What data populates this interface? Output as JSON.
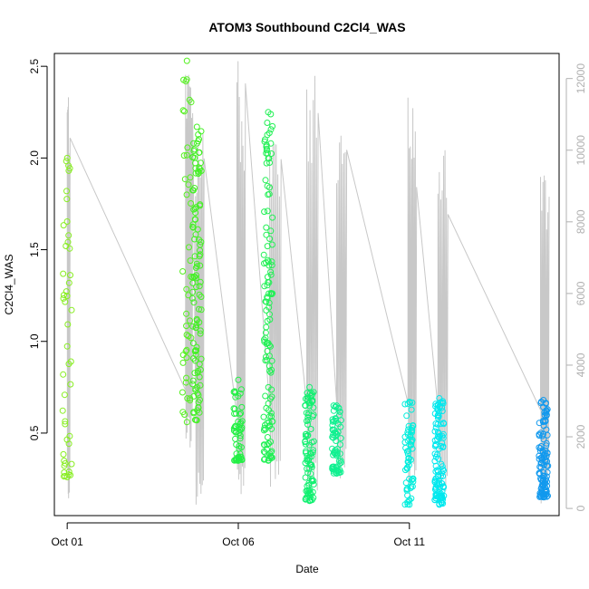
{
  "chart_data": {
    "type": "scatter",
    "title": "ATOM3 Southbound C2Cl4_WAS",
    "xlabel": "Date",
    "ylabel": "C2Cl4_WAS",
    "x_ticks": [
      "Oct 01",
      "Oct 06",
      "Oct 11"
    ],
    "xlim": [
      "2016-09-30T15:00",
      "2016-10-15T09:00"
    ],
    "y_ticks": [
      "0.5",
      "1.0",
      "1.5",
      "2.0",
      "2.5"
    ],
    "ylim": [
      0.05,
      2.57
    ],
    "y2_ticks": [
      "0",
      "2000",
      "4000",
      "6000",
      "8000",
      "10000",
      "12000"
    ],
    "y2lim": [
      -200,
      12700
    ],
    "grid": false,
    "point_color_by_time": [
      "#7fff00",
      "#00ff33",
      "#00ffcc",
      "#0099ff"
    ],
    "line_color": "#c8c8c8",
    "series": [
      {
        "kind": "points",
        "clusters": [
          {
            "t": "2016-10-01T00:00",
            "ymin": 0.26,
            "ymax": 2.0,
            "n": 45,
            "color": "#88ee22"
          },
          {
            "t": "2016-10-04T12:00",
            "ymin": 0.56,
            "ymax": 2.53,
            "n": 40,
            "color": "#55f020"
          },
          {
            "t": "2016-10-04T19:00",
            "ymin": 0.57,
            "ymax": 2.17,
            "n": 110,
            "color": "#44f025"
          },
          {
            "t": "2016-10-06T00:00",
            "ymin": 0.35,
            "ymax": 0.79,
            "n": 55,
            "color": "#22f044"
          },
          {
            "t": "2016-10-06T21:00",
            "ymin": 0.35,
            "ymax": 2.25,
            "n": 130,
            "color": "#22f055"
          },
          {
            "t": "2016-10-08T02:00",
            "ymin": 0.13,
            "ymax": 0.75,
            "n": 90,
            "color": "#11f070"
          },
          {
            "t": "2016-10-08T21:00",
            "ymin": 0.28,
            "ymax": 0.65,
            "n": 70,
            "color": "#10f090"
          },
          {
            "t": "2016-10-11T00:00",
            "ymin": 0.11,
            "ymax": 0.67,
            "n": 60,
            "color": "#00eedd"
          },
          {
            "t": "2016-10-11T21:00",
            "ymin": 0.11,
            "ymax": 0.69,
            "n": 110,
            "color": "#00e8ee"
          },
          {
            "t": "2016-10-14T22:00",
            "ymin": 0.15,
            "ymax": 0.68,
            "n": 110,
            "color": "#1199ee"
          }
        ]
      },
      {
        "kind": "altitude-line",
        "axis": "right",
        "flights": [
          {
            "t0": "2016-10-01T00:00",
            "t1": "2016-10-01T02:00",
            "max": 12100,
            "min": 0
          },
          {
            "t0": "2016-10-04T11:00",
            "t1": "2016-10-04T16:00",
            "max": 12600,
            "min": 1600
          },
          {
            "t0": "2016-10-04T18:00",
            "t1": "2016-10-05T00:00",
            "max": 10700,
            "min": 100
          },
          {
            "t0": "2016-10-05T23:00",
            "t1": "2016-10-06T05:00",
            "max": 12500,
            "min": 100
          },
          {
            "t0": "2016-10-06T22:00",
            "t1": "2016-10-07T06:00",
            "max": 11000,
            "min": 600
          },
          {
            "t0": "2016-10-08T00:00",
            "t1": "2016-10-08T08:00",
            "max": 12300,
            "min": 200
          },
          {
            "t0": "2016-10-08T21:00",
            "t1": "2016-10-09T04:00",
            "max": 11000,
            "min": 700
          },
          {
            "t0": "2016-10-10T23:00",
            "t1": "2016-10-11T05:00",
            "max": 11800,
            "min": 200
          },
          {
            "t0": "2016-10-11T20:00",
            "t1": "2016-10-12T03:00",
            "max": 10600,
            "min": 400
          },
          {
            "t0": "2016-10-14T20:00",
            "t1": "2016-10-15T02:00",
            "max": 10200,
            "min": 100
          }
        ]
      }
    ]
  }
}
